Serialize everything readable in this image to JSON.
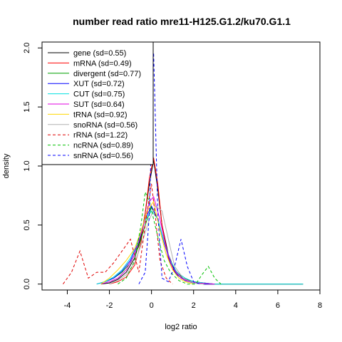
{
  "chart_data": {
    "type": "line",
    "title": "number read ratio mre11-H125.G1.2/ku70.G1.1",
    "xlabel": "log2 ratio",
    "ylabel": "density",
    "xlim": [
      -5.2,
      8.0
    ],
    "ylim": [
      -0.05,
      2.05
    ],
    "x_ticks": [
      -4,
      -2,
      0,
      2,
      4,
      6,
      8
    ],
    "x_tick_labels": [
      "-4",
      "-2",
      "0",
      "2",
      "4",
      "6",
      "8"
    ],
    "y_ticks": [
      0.0,
      0.5,
      1.0,
      1.5,
      2.0
    ],
    "y_tick_labels": [
      "0.0",
      "0.5",
      "1.0",
      "1.5",
      "2.0"
    ],
    "grid": false,
    "legend_position": "top-left",
    "series": [
      {
        "name": "gene (sd=0.55)",
        "color": "#000000",
        "dash": "solid",
        "x": [
          -2.4,
          -2.0,
          -1.6,
          -1.2,
          -0.8,
          -0.5,
          -0.3,
          -0.1,
          0.1,
          0.3,
          0.5,
          0.8,
          1.1,
          1.5,
          2.0,
          2.5,
          3.0,
          4.0,
          5.0,
          6.0,
          7.2
        ],
        "y": [
          0.0,
          0.01,
          0.04,
          0.1,
          0.22,
          0.4,
          0.6,
          0.85,
          1.05,
          0.8,
          0.5,
          0.25,
          0.12,
          0.05,
          0.02,
          0.01,
          0.0,
          0.0,
          0.0,
          0.0,
          0.0
        ]
      },
      {
        "name": "mRNA (sd=0.49)",
        "color": "#ff0000",
        "dash": "solid",
        "x": [
          -2.0,
          -1.6,
          -1.2,
          -0.8,
          -0.5,
          -0.3,
          -0.1,
          0.1,
          0.3,
          0.5,
          0.8,
          1.1,
          1.5,
          2.0,
          2.5,
          3.0
        ],
        "y": [
          0.0,
          0.02,
          0.06,
          0.16,
          0.35,
          0.6,
          0.9,
          1.07,
          0.85,
          0.5,
          0.22,
          0.1,
          0.04,
          0.01,
          0.0,
          0.0
        ]
      },
      {
        "name": "divergent (sd=0.77)",
        "color": "#00a000",
        "dash": "solid",
        "x": [
          -2.6,
          -2.2,
          -1.8,
          -1.4,
          -1.0,
          -0.6,
          -0.3,
          0.0,
          0.3,
          0.6,
          0.9,
          1.2,
          1.6,
          2.0,
          2.5,
          3.0
        ],
        "y": [
          0.0,
          0.02,
          0.05,
          0.1,
          0.18,
          0.32,
          0.5,
          0.65,
          0.55,
          0.35,
          0.18,
          0.08,
          0.03,
          0.01,
          0.0,
          0.0
        ]
      },
      {
        "name": "XUT (sd=0.72)",
        "color": "#0000ff",
        "dash": "solid",
        "x": [
          -2.6,
          -2.2,
          -1.8,
          -1.4,
          -1.0,
          -0.6,
          -0.3,
          0.0,
          0.3,
          0.6,
          0.9,
          1.2,
          1.6,
          2.0,
          2.5,
          3.0
        ],
        "y": [
          0.0,
          0.02,
          0.05,
          0.11,
          0.2,
          0.36,
          0.55,
          0.66,
          0.55,
          0.35,
          0.18,
          0.08,
          0.03,
          0.01,
          0.0,
          0.0
        ]
      },
      {
        "name": "CUT (sd=0.75)",
        "color": "#00e0e0",
        "dash": "solid",
        "x": [
          -2.6,
          -2.2,
          -1.8,
          -1.4,
          -1.0,
          -0.6,
          -0.3,
          0.0,
          0.3,
          0.6,
          0.9,
          1.2,
          1.6,
          2.0,
          2.5,
          3.0,
          4.0,
          5.0,
          6.0,
          7.2
        ],
        "y": [
          0.0,
          0.02,
          0.06,
          0.12,
          0.22,
          0.38,
          0.54,
          0.62,
          0.55,
          0.36,
          0.2,
          0.1,
          0.05,
          0.02,
          0.01,
          0.0,
          0.0,
          0.0,
          0.0,
          0.0
        ]
      },
      {
        "name": "SUT (sd=0.64)",
        "color": "#e000e0",
        "dash": "solid",
        "x": [
          -2.4,
          -2.0,
          -1.6,
          -1.2,
          -0.8,
          -0.4,
          -0.1,
          0.1,
          0.4,
          0.7,
          1.0,
          1.4,
          1.8,
          2.2,
          3.0
        ],
        "y": [
          0.0,
          0.02,
          0.05,
          0.12,
          0.25,
          0.48,
          0.7,
          0.74,
          0.55,
          0.3,
          0.14,
          0.05,
          0.02,
          0.01,
          0.0
        ]
      },
      {
        "name": "tRNA (sd=0.92)",
        "color": "#ffd700",
        "dash": "solid",
        "x": [
          -2.4,
          -2.0,
          -1.6,
          -1.2,
          -0.8,
          -0.5,
          -0.2,
          0.1,
          0.4,
          0.7,
          1.0,
          1.3,
          1.6,
          2.0
        ],
        "y": [
          0.0,
          0.05,
          0.12,
          0.2,
          0.3,
          0.45,
          0.62,
          0.7,
          0.45,
          0.25,
          0.12,
          0.05,
          0.02,
          0.0
        ]
      },
      {
        "name": "snoRNA (sd=0.56)",
        "color": "#b0b0b0",
        "dash": "solid",
        "x": [
          -2.0,
          -1.6,
          -1.2,
          -0.8,
          -0.4,
          -0.1,
          0.2,
          0.5,
          0.8,
          1.1,
          1.5,
          2.0,
          2.5
        ],
        "y": [
          0.0,
          0.03,
          0.08,
          0.18,
          0.38,
          0.55,
          0.66,
          0.62,
          0.38,
          0.15,
          0.05,
          0.01,
          0.0
        ]
      },
      {
        "name": "rRNA (sd=1.22)",
        "color": "#e00000",
        "dash": "dashed",
        "x": [
          -4.2,
          -3.8,
          -3.4,
          -3.0,
          -2.6,
          -2.2,
          -1.8,
          -1.4,
          -1.0,
          -0.6,
          -0.3,
          0.0,
          0.2,
          0.4,
          0.7,
          1.0
        ],
        "y": [
          0.0,
          0.1,
          0.28,
          0.05,
          0.1,
          0.1,
          0.18,
          0.28,
          0.38,
          0.1,
          0.5,
          0.85,
          0.55,
          0.2,
          0.05,
          0.0
        ]
      },
      {
        "name": "ncRNA (sd=0.89)",
        "color": "#00c000",
        "dash": "dashed",
        "x": [
          -1.6,
          -1.2,
          -0.8,
          -0.5,
          -0.3,
          -0.1,
          0.1,
          0.3,
          0.6,
          0.9,
          1.3,
          1.7,
          2.1,
          2.4,
          2.7,
          3.0,
          3.3
        ],
        "y": [
          0.0,
          0.05,
          0.2,
          0.5,
          0.78,
          0.7,
          0.55,
          0.4,
          0.2,
          0.1,
          0.03,
          0.0,
          0.0,
          0.08,
          0.15,
          0.05,
          0.0
        ]
      },
      {
        "name": "snRNA (sd=0.56)",
        "color": "#0000ff",
        "dash": "dashed",
        "x": [
          -0.6,
          -0.3,
          -0.1,
          0.1,
          0.3,
          0.5,
          0.8,
          1.1,
          1.4,
          1.7,
          2.0,
          2.3
        ],
        "y": [
          0.0,
          0.1,
          0.6,
          1.96,
          0.6,
          0.05,
          0.02,
          0.15,
          0.38,
          0.15,
          0.02,
          0.0
        ]
      }
    ]
  }
}
